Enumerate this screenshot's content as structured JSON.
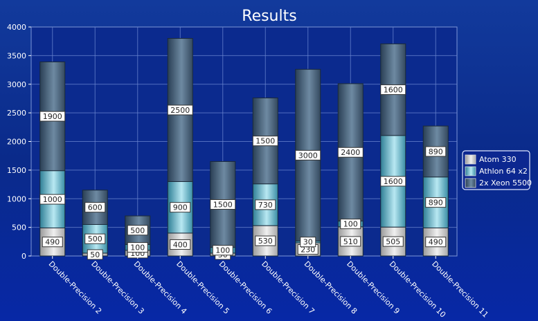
{
  "chart_data": {
    "type": "bar",
    "stacked": true,
    "title": "Results",
    "xlabel": "",
    "ylabel": "",
    "ylim": [
      0,
      4000
    ],
    "yticks": [
      0,
      500,
      1000,
      1500,
      2000,
      2500,
      3000,
      3500,
      4000
    ],
    "grid": true,
    "legend_position": "right",
    "categories": [
      "Double-Precision 2",
      "Double-Precision 3",
      "Double-Precision 4",
      "Double-Precision 5",
      "Double-Precision 6",
      "Double-Precision 7",
      "Double-Precision 8",
      "Double-Precision 9",
      "Double-Precision 10",
      "Double-Precision 11"
    ],
    "series": [
      {
        "name": "Atom 330",
        "color": "#c8c8c8",
        "values": [
          490,
          50,
          100,
          400,
          50,
          530,
          230,
          510,
          505,
          490
        ]
      },
      {
        "name": "Athlon 64 x2",
        "color": "#4fa3b8",
        "values": [
          1000,
          500,
          100,
          900,
          100,
          730,
          30,
          100,
          1600,
          890
        ]
      },
      {
        "name": "2x Xeon 5500",
        "color": "#3f5a72",
        "values": [
          1900,
          600,
          500,
          2500,
          1500,
          1500,
          3000,
          2400,
          1600,
          890
        ]
      }
    ]
  }
}
